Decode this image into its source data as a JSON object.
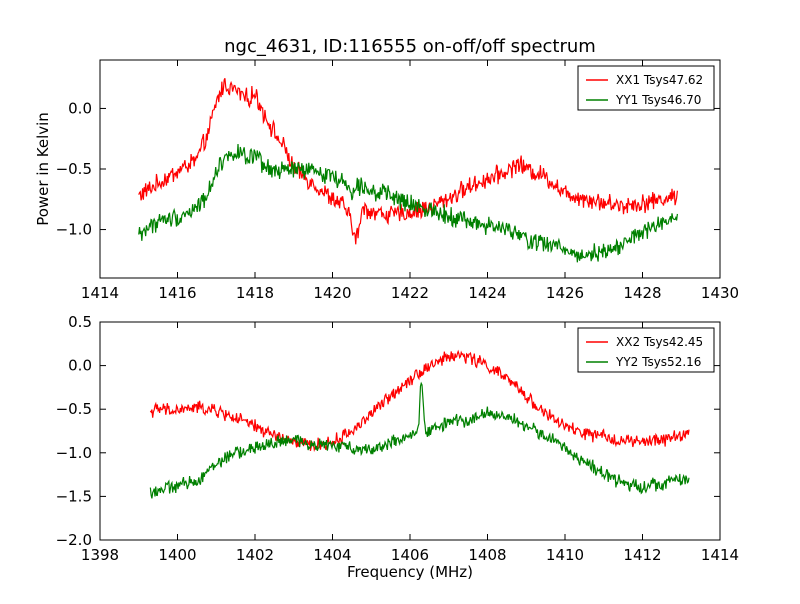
{
  "chart_data": [
    {
      "type": "line",
      "title": "ngc_4631, ID:116555 on-off/off spectrum",
      "xlabel": "",
      "ylabel": "Power in Kelvin",
      "xlim": [
        1414,
        1430
      ],
      "ylim": [
        -1.4,
        0.4
      ],
      "xticks": [
        1414,
        1416,
        1418,
        1420,
        1422,
        1424,
        1426,
        1428,
        1430
      ],
      "xtick_labels": [
        "1414",
        "1416",
        "1418",
        "1420",
        "1422",
        "1424",
        "1426",
        "1428",
        "1430"
      ],
      "yticks": [
        -1.0,
        -0.5,
        0.0
      ],
      "ytick_labels": [
        "−1.0",
        "−0.5",
        "0.0"
      ],
      "grid": false,
      "legend_position": "top-right",
      "series": [
        {
          "name": "XX1 Tsys47.62",
          "color": "#ff0000",
          "x": [
            1415.0,
            1415.5,
            1416.0,
            1416.5,
            1416.8,
            1417.0,
            1417.2,
            1417.5,
            1417.8,
            1418.0,
            1418.2,
            1418.5,
            1418.8,
            1419.0,
            1419.5,
            1420.0,
            1420.3,
            1420.5,
            1420.6,
            1420.8,
            1421.0,
            1421.5,
            1422.0,
            1422.5,
            1423.0,
            1423.5,
            1424.0,
            1424.5,
            1424.8,
            1425.0,
            1425.5,
            1426.0,
            1426.5,
            1427.0,
            1427.5,
            1428.0,
            1428.5,
            1428.9
          ],
          "y": [
            -0.72,
            -0.62,
            -0.52,
            -0.42,
            -0.2,
            0.05,
            0.2,
            0.15,
            0.08,
            0.12,
            -0.02,
            -0.2,
            -0.35,
            -0.5,
            -0.62,
            -0.75,
            -0.8,
            -0.95,
            -1.1,
            -0.82,
            -0.85,
            -0.88,
            -0.86,
            -0.82,
            -0.74,
            -0.65,
            -0.58,
            -0.52,
            -0.45,
            -0.5,
            -0.56,
            -0.7,
            -0.74,
            -0.78,
            -0.8,
            -0.78,
            -0.75,
            -0.72
          ]
        },
        {
          "name": "YY1 Tsys46.70",
          "color": "#008000",
          "x": [
            1415.0,
            1415.5,
            1416.0,
            1416.5,
            1416.8,
            1417.0,
            1417.2,
            1417.5,
            1417.8,
            1418.0,
            1418.3,
            1418.6,
            1419.0,
            1419.5,
            1420.0,
            1420.3,
            1420.5,
            1420.6,
            1420.8,
            1421.0,
            1421.5,
            1422.0,
            1422.5,
            1423.0,
            1423.5,
            1424.0,
            1424.5,
            1425.0,
            1425.5,
            1426.0,
            1426.3,
            1426.5,
            1427.0,
            1427.5,
            1428.0,
            1428.5,
            1428.9
          ],
          "y": [
            -1.04,
            -0.93,
            -0.9,
            -0.82,
            -0.7,
            -0.5,
            -0.42,
            -0.35,
            -0.42,
            -0.4,
            -0.5,
            -0.52,
            -0.5,
            -0.52,
            -0.55,
            -0.62,
            -0.68,
            -0.65,
            -0.62,
            -0.68,
            -0.72,
            -0.8,
            -0.83,
            -0.88,
            -0.93,
            -0.97,
            -1.0,
            -1.08,
            -1.12,
            -1.15,
            -1.22,
            -1.2,
            -1.18,
            -1.12,
            -1.02,
            -0.95,
            -0.92
          ]
        }
      ]
    },
    {
      "type": "line",
      "title": "",
      "xlabel": "Frequency (MHz)",
      "ylabel": "",
      "xlim": [
        1398,
        1414
      ],
      "ylim": [
        -2.0,
        0.5
      ],
      "xticks": [
        1398,
        1400,
        1402,
        1404,
        1406,
        1408,
        1410,
        1412,
        1414
      ],
      "xtick_labels": [
        "1398",
        "1400",
        "1402",
        "1404",
        "1406",
        "1408",
        "1410",
        "1412",
        "1414"
      ],
      "yticks": [
        -2.0,
        -1.5,
        -1.0,
        -0.5,
        0.0,
        0.5
      ],
      "ytick_labels": [
        "−2.0",
        "−1.5",
        "−1.0",
        "−0.5",
        "0.0",
        "0.5"
      ],
      "grid": false,
      "legend_position": "top-right",
      "series": [
        {
          "name": "XX2 Tsys42.45",
          "color": "#ff0000",
          "x": [
            1399.3,
            1399.6,
            1399.9,
            1400.2,
            1400.5,
            1401.0,
            1401.5,
            1402.0,
            1402.5,
            1403.0,
            1403.5,
            1404.0,
            1404.5,
            1405.0,
            1405.5,
            1406.0,
            1406.5,
            1407.0,
            1407.3,
            1407.5,
            1408.0,
            1408.5,
            1409.0,
            1409.5,
            1410.0,
            1410.5,
            1411.0,
            1411.5,
            1412.0,
            1412.5,
            1413.0,
            1413.2
          ],
          "y": [
            -0.52,
            -0.5,
            -0.52,
            -0.5,
            -0.48,
            -0.52,
            -0.6,
            -0.7,
            -0.8,
            -0.88,
            -0.92,
            -0.88,
            -0.75,
            -0.55,
            -0.35,
            -0.15,
            0.0,
            0.1,
            0.12,
            0.1,
            0.0,
            -0.15,
            -0.35,
            -0.55,
            -0.7,
            -0.78,
            -0.82,
            -0.86,
            -0.88,
            -0.85,
            -0.8,
            -0.76
          ]
        },
        {
          "name": "YY2 Tsys52.16",
          "color": "#008000",
          "x": [
            1399.3,
            1399.6,
            1400.0,
            1400.5,
            1401.0,
            1401.5,
            1402.0,
            1402.5,
            1403.0,
            1403.5,
            1404.0,
            1404.5,
            1405.0,
            1405.5,
            1406.0,
            1406.2,
            1406.3,
            1406.4,
            1406.6,
            1407.0,
            1407.5,
            1408.0,
            1408.5,
            1409.0,
            1409.5,
            1410.0,
            1410.5,
            1411.0,
            1411.5,
            1412.0,
            1412.5,
            1413.0,
            1413.2
          ],
          "y": [
            -1.45,
            -1.42,
            -1.38,
            -1.32,
            -1.12,
            -1.0,
            -0.95,
            -0.88,
            -0.86,
            -0.9,
            -0.92,
            -0.94,
            -0.96,
            -0.88,
            -0.82,
            -0.8,
            -0.1,
            -0.78,
            -0.72,
            -0.65,
            -0.62,
            -0.55,
            -0.58,
            -0.7,
            -0.8,
            -0.95,
            -1.1,
            -1.25,
            -1.35,
            -1.38,
            -1.35,
            -1.3,
            -1.32
          ]
        }
      ]
    }
  ]
}
